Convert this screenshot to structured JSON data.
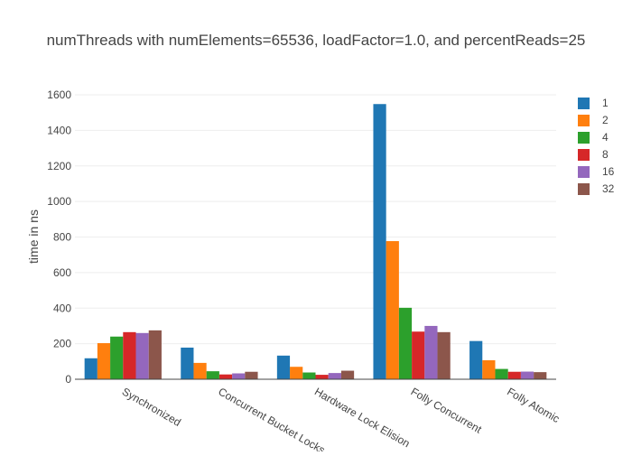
{
  "chart_data": {
    "type": "bar",
    "title": "numThreads with numElements=65536, loadFactor=1.0, and percentReads=25",
    "xlabel": "",
    "ylabel": "time in ns",
    "ylim": [
      0,
      1600
    ],
    "yticks": [
      0,
      200,
      400,
      600,
      800,
      1000,
      1200,
      1400,
      1600
    ],
    "grid": true,
    "legend_position": "right",
    "categories": [
      "Synchronized",
      "Concurrent Bucket Locks",
      "Hardware Lock Elision",
      "Folly Concurrent",
      "Folly Atomic"
    ],
    "series": [
      {
        "name": "1",
        "color": "#1f77b4",
        "values": [
          118,
          178,
          133,
          1548,
          215
        ]
      },
      {
        "name": "2",
        "color": "#ff7f0e",
        "values": [
          203,
          92,
          70,
          777,
          107
        ]
      },
      {
        "name": "4",
        "color": "#2ca02c",
        "values": [
          240,
          45,
          38,
          402,
          58
        ]
      },
      {
        "name": "8",
        "color": "#d62728",
        "values": [
          265,
          27,
          25,
          268,
          42
        ]
      },
      {
        "name": "16",
        "color": "#9467bd",
        "values": [
          260,
          33,
          35,
          300,
          43
        ]
      },
      {
        "name": "32",
        "color": "#8c564b",
        "values": [
          275,
          42,
          48,
          265,
          40
        ]
      }
    ]
  }
}
